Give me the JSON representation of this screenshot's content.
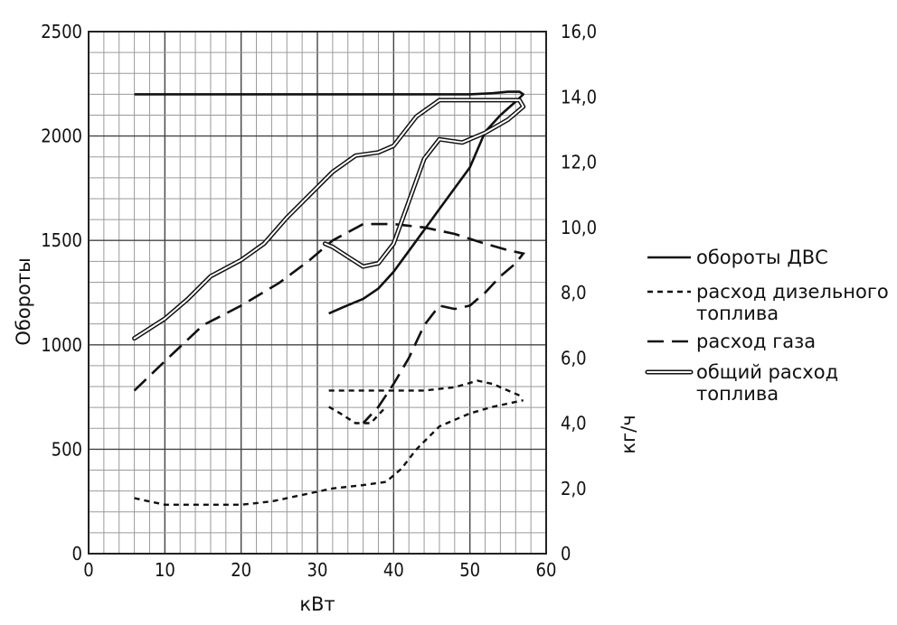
{
  "chart_data": {
    "type": "line",
    "xlabel": "кВт",
    "ylabel_left": "Обороты",
    "ylabel_right": "кг/ч",
    "xlim": [
      0,
      60
    ],
    "ylim_left": [
      0,
      2500
    ],
    "ylim_right": [
      0,
      16
    ],
    "x_ticks": [
      "0",
      "10",
      "20",
      "30",
      "40",
      "50",
      "60"
    ],
    "y_left_ticks": [
      "0",
      "500",
      "1000",
      "1500",
      "2000",
      "2500"
    ],
    "y_right_ticks": [
      "0",
      "2,0",
      "4,0",
      "6,0",
      "8,0",
      "10,0",
      "12,0",
      "14,0",
      "16,0"
    ],
    "grid": true,
    "legend_position": "right",
    "series": [
      {
        "name": "обороты ДВС",
        "style": "solid",
        "axis": "left",
        "points": [
          [
            6,
            2200
          ],
          [
            10,
            2200
          ],
          [
            20,
            2200
          ],
          [
            30,
            2200
          ],
          [
            40,
            2200
          ],
          [
            50,
            2200
          ],
          [
            53,
            2205
          ],
          [
            55,
            2212
          ],
          [
            56.5,
            2212
          ],
          [
            57,
            2200
          ],
          [
            56,
            2165
          ],
          [
            54,
            2100
          ],
          [
            52,
            2020
          ],
          [
            50,
            1850
          ],
          [
            48,
            1750
          ],
          [
            46,
            1650
          ],
          [
            44,
            1550
          ],
          [
            42,
            1450
          ],
          [
            40,
            1350
          ],
          [
            38,
            1270
          ],
          [
            36,
            1220
          ],
          [
            34,
            1190
          ],
          [
            31.5,
            1150
          ]
        ]
      },
      {
        "name": "расход дизельного топлива",
        "style": "dashed-short",
        "axis": "right",
        "points_upper": [
          [
            31.5,
            5.0
          ],
          [
            35,
            5.0
          ],
          [
            40,
            5.0
          ],
          [
            44,
            5.0
          ],
          [
            48,
            5.1
          ],
          [
            51,
            5.3
          ],
          [
            53,
            5.2
          ],
          [
            55,
            5.0
          ],
          [
            57,
            4.8
          ]
        ],
        "points_lower": [
          [
            6,
            1.7
          ],
          [
            10,
            1.5
          ],
          [
            15,
            1.5
          ],
          [
            20,
            1.5
          ],
          [
            24,
            1.6
          ],
          [
            28,
            1.8
          ],
          [
            32,
            2.0
          ],
          [
            36,
            2.1
          ],
          [
            39,
            2.2
          ],
          [
            41,
            2.6
          ],
          [
            43,
            3.2
          ],
          [
            46,
            3.9
          ],
          [
            50,
            4.3
          ],
          [
            53,
            4.5
          ],
          [
            55,
            4.6
          ],
          [
            57,
            4.7
          ]
        ],
        "points_hook": [
          [
            31.5,
            4.5
          ],
          [
            33,
            4.3
          ],
          [
            35,
            4.0
          ],
          [
            37,
            4.0
          ],
          [
            39,
            4.5
          ]
        ]
      },
      {
        "name": "расход газа",
        "style": "dashed-long",
        "axis": "right",
        "points": [
          [
            6,
            5.0
          ],
          [
            10,
            5.9
          ],
          [
            15,
            7.0
          ],
          [
            20,
            7.6
          ],
          [
            25,
            8.3
          ],
          [
            29,
            9.0
          ],
          [
            32,
            9.6
          ],
          [
            36,
            10.1
          ],
          [
            40,
            10.1
          ],
          [
            44,
            10.0
          ],
          [
            48,
            9.8
          ],
          [
            52,
            9.5
          ],
          [
            55,
            9.3
          ],
          [
            57,
            9.2
          ],
          [
            56,
            8.9
          ],
          [
            54,
            8.5
          ],
          [
            52,
            8.0
          ],
          [
            50,
            7.6
          ],
          [
            48,
            7.5
          ],
          [
            46,
            7.6
          ],
          [
            44,
            7.0
          ],
          [
            42,
            6.0
          ],
          [
            40,
            5.2
          ],
          [
            38,
            4.5
          ],
          [
            36,
            4.0
          ]
        ]
      },
      {
        "name": "общий расход топлива",
        "style": "double",
        "axis": "right",
        "points": [
          [
            6,
            6.6
          ],
          [
            10,
            7.2
          ],
          [
            13,
            7.8
          ],
          [
            16,
            8.5
          ],
          [
            20,
            9.0
          ],
          [
            23,
            9.5
          ],
          [
            26,
            10.3
          ],
          [
            29,
            11.0
          ],
          [
            32,
            11.7
          ],
          [
            35,
            12.2
          ],
          [
            38,
            12.3
          ],
          [
            40,
            12.5
          ],
          [
            43,
            13.4
          ],
          [
            46,
            13.9
          ],
          [
            50,
            13.9
          ],
          [
            54,
            13.9
          ],
          [
            56.5,
            13.9
          ],
          [
            57,
            13.7
          ],
          [
            55,
            13.3
          ],
          [
            52,
            12.9
          ],
          [
            49,
            12.6
          ],
          [
            46,
            12.7
          ],
          [
            44,
            12.1
          ],
          [
            42,
            10.8
          ],
          [
            40,
            9.5
          ],
          [
            38,
            8.9
          ],
          [
            36,
            8.8
          ],
          [
            34,
            9.1
          ],
          [
            32,
            9.4
          ],
          [
            31,
            9.5
          ]
        ]
      }
    ]
  }
}
